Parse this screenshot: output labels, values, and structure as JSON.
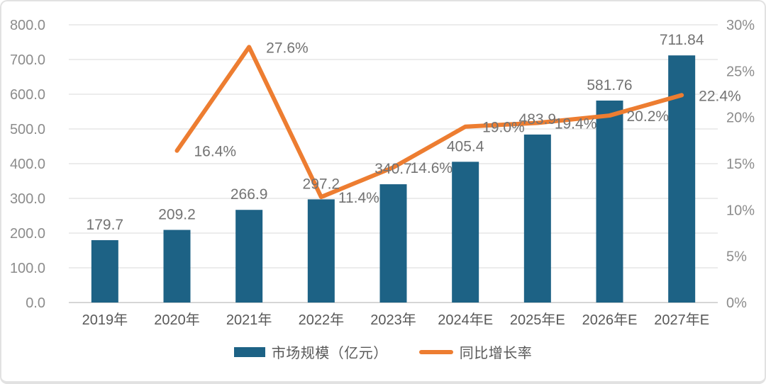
{
  "legend": {
    "bars_label": "市场规模（亿元）",
    "line_label": "同比增长率"
  },
  "chart_data": {
    "type": "bar+line",
    "title": "",
    "categories": [
      "2019年",
      "2020年",
      "2021年",
      "2022年",
      "2023年",
      "2024年E",
      "2025年E",
      "2026年E",
      "2027年E"
    ],
    "series": [
      {
        "name": "市场规模（亿元）",
        "type": "bar",
        "axis": "left",
        "values": [
          179.7,
          209.2,
          266.9,
          297.2,
          340.7,
          405.4,
          483.9,
          581.76,
          711.84
        ],
        "labels": [
          "179.7",
          "209.2",
          "266.9",
          "297.2",
          "340.7",
          "405.4",
          "483.9",
          "581.76",
          "711.84"
        ]
      },
      {
        "name": "同比增长率",
        "type": "line",
        "axis": "right",
        "values": [
          null,
          16.4,
          27.6,
          11.4,
          14.6,
          19.0,
          19.4,
          20.2,
          22.4
        ],
        "labels": [
          "",
          "16.4%",
          "27.6%",
          "11.4%",
          "14.6%",
          "19.0%",
          "19.4%",
          "20.2%",
          "22.4%"
        ]
      }
    ],
    "left_axis": {
      "min": 0,
      "max": 800,
      "ticks": [
        "800.0",
        "700.0",
        "600.0",
        "500.0",
        "400.0",
        "300.0",
        "200.0",
        "100.0",
        "0.0"
      ]
    },
    "right_axis": {
      "min": 0,
      "max": 30,
      "ticks": [
        "30%",
        "25%",
        "20%",
        "15%",
        "10%",
        "5%",
        "0%"
      ]
    },
    "grid": true,
    "legend_position": "bottom",
    "colors": {
      "bar": "#1d6285",
      "line": "#ed7d31",
      "grid": "#d9d9d9",
      "baseline": "#c8c8c8",
      "tick_text": "#8c8c8c",
      "data_label": "#737373",
      "category_text": "#595959"
    }
  }
}
